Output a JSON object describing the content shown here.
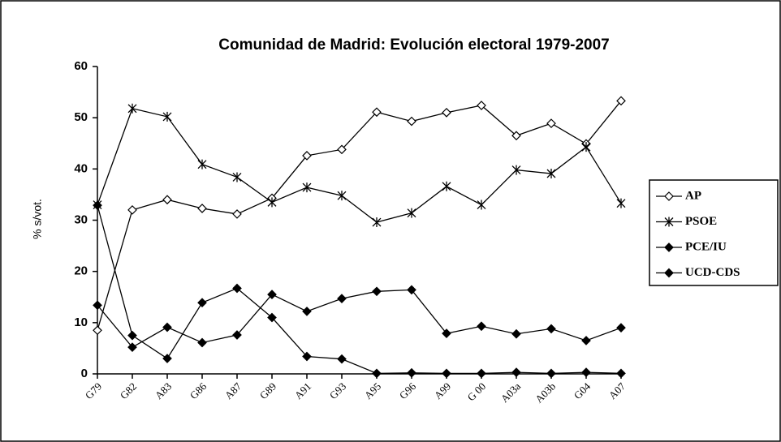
{
  "chart_data": {
    "type": "line",
    "title": "Comunidad de Madrid: Evolución electoral 1979-2007",
    "y_label": "% s/vot.",
    "categories": [
      "G79",
      "G82",
      "A83",
      "G86",
      "A87",
      "G89",
      "A91",
      "G93",
      "A95",
      "G96",
      "A99",
      "G 00",
      "A03a",
      "A03b",
      "G04",
      "A07"
    ],
    "series": [
      {
        "name": "AP",
        "color": "#000000",
        "marker": "open-diamond",
        "values": [
          8.5,
          32,
          34,
          32.3,
          31.2,
          34.3,
          42.6,
          43.8,
          51.1,
          49.3,
          51,
          52.4,
          46.5,
          48.9,
          44.9,
          53.3
        ]
      },
      {
        "name": "PSOE",
        "color": "#000000",
        "marker": "star",
        "values": [
          33,
          51.8,
          50.2,
          40.9,
          38.4,
          33.5,
          36.4,
          34.8,
          29.6,
          31.4,
          36.6,
          33,
          39.8,
          39.1,
          44.3,
          33.3
        ]
      },
      {
        "name": "PCE/IU",
        "color": "#000000",
        "marker": "diamond",
        "values": [
          13.4,
          5.2,
          9.1,
          6.1,
          7.6,
          15.5,
          12.2,
          14.7,
          16.1,
          16.4,
          7.9,
          9.3,
          7.8,
          8.8,
          6.5,
          9
        ]
      },
      {
        "name": "UCD-CDS",
        "color": "#000000",
        "marker": "diamond",
        "values": [
          32.9,
          7.5,
          3,
          13.9,
          16.7,
          11,
          3.4,
          2.9,
          0.1,
          0.2,
          0.1,
          0.1,
          0.3,
          0.1,
          0.3,
          0.1
        ]
      }
    ],
    "ylim": [
      0,
      60
    ],
    "yticks": [
      0,
      10,
      20,
      30,
      40,
      50,
      60
    ],
    "legend": "right"
  }
}
